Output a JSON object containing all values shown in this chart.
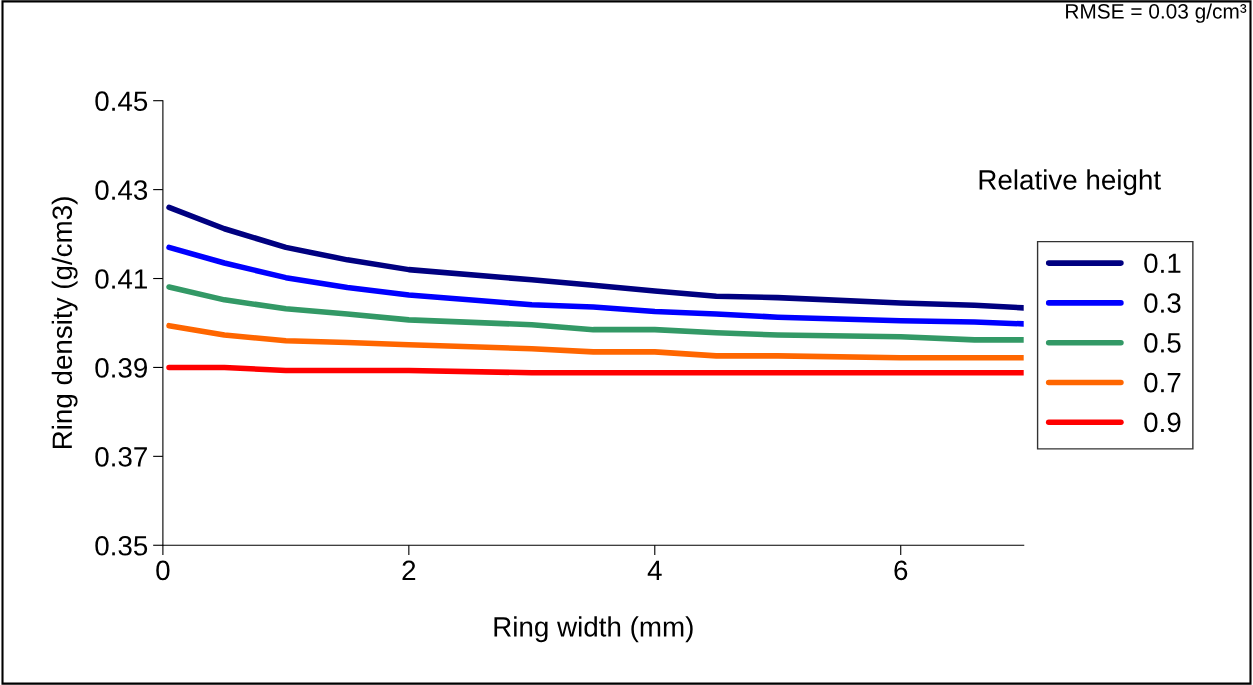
{
  "chart_data": {
    "type": "line",
    "xlabel": "Ring width (mm)",
    "ylabel": "Ring density (g/cm3)",
    "legend_title": "Relative height",
    "annotations": [
      "RMSE = 0.03 g/cm³"
    ],
    "xlim": [
      0,
      7
    ],
    "xticks": [
      0,
      2,
      4,
      6
    ],
    "ylim": [
      0.35,
      0.45
    ],
    "yticks": [
      {
        "value": 0.35,
        "label": "0.35"
      },
      0.37,
      0.39,
      0.41,
      0.43,
      0.45
    ],
    "grid": false,
    "legend": "right",
    "marker": "none",
    "line_style": "solid",
    "x": [
      0.05,
      0.5,
      1,
      1.5,
      2,
      3,
      3.5,
      4,
      4.5,
      5,
      6,
      6.6,
      7
    ],
    "series": [
      {
        "name": "0.1",
        "color": "#000080",
        "values": [
          0.426,
          0.4212,
          0.417,
          0.4142,
          0.412,
          0.4097,
          0.4085,
          0.4072,
          0.406,
          0.4057,
          0.4045,
          0.404,
          0.4034
        ]
      },
      {
        "name": "0.3",
        "color": "#0000ff",
        "values": [
          0.417,
          0.4135,
          0.4102,
          0.408,
          0.4063,
          0.4041,
          0.4036,
          0.4026,
          0.402,
          0.4013,
          0.4005,
          0.4002,
          0.3998
        ]
      },
      {
        "name": "0.5",
        "color": "#339966",
        "values": [
          0.4081,
          0.4052,
          0.4032,
          0.402,
          0.4007,
          0.3996,
          0.3985,
          0.3985,
          0.3978,
          0.3973,
          0.3969,
          0.3962,
          0.3962
        ]
      },
      {
        "name": "0.7",
        "color": "#ff6600",
        "values": [
          0.3994,
          0.3973,
          0.396,
          0.3956,
          0.3951,
          0.3942,
          0.3935,
          0.3935,
          0.3926,
          0.3926,
          0.3922,
          0.3922,
          0.3922
        ]
      },
      {
        "name": "0.9",
        "color": "#ff0000",
        "values": [
          0.39,
          0.39,
          0.3893,
          0.3893,
          0.3893,
          0.3888,
          0.3888,
          0.3888,
          0.3888,
          0.3888,
          0.3888,
          0.3888,
          0.3888
        ]
      }
    ]
  }
}
